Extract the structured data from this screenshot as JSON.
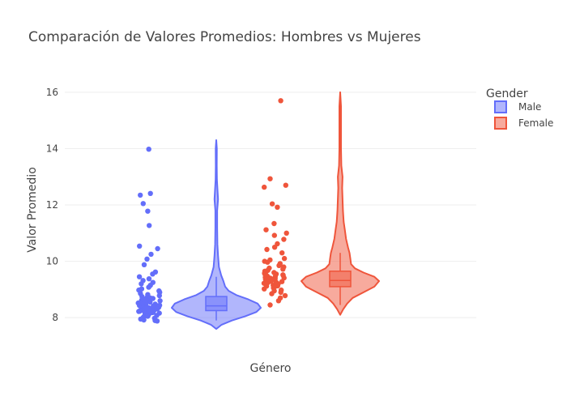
{
  "chart_data": {
    "type": "violin",
    "title": "Comparación de Valores Promedios: Hombres vs Mujeres",
    "xlabel": "Género",
    "ylabel": "Valor Promedio",
    "ylim": [
      7.2,
      16.4
    ],
    "yticks": [
      8,
      10,
      12,
      14,
      16
    ],
    "grid": true,
    "legend": {
      "title": "Gender",
      "placement": "top-right"
    },
    "series": [
      {
        "name": "Male",
        "color": "#636efa",
        "fill": "rgba(99,110,250,0.5)",
        "min": 7.6,
        "q1": 8.25,
        "median": 8.42,
        "q3": 8.75,
        "max": 14.3,
        "whisker_low": 7.9,
        "whisker_high": 9.45,
        "density": [
          [
            7.6,
            0.0
          ],
          [
            7.75,
            0.12
          ],
          [
            7.9,
            0.35
          ],
          [
            8.05,
            0.65
          ],
          [
            8.2,
            0.9
          ],
          [
            8.35,
            1.0
          ],
          [
            8.5,
            0.93
          ],
          [
            8.65,
            0.72
          ],
          [
            8.8,
            0.45
          ],
          [
            8.95,
            0.28
          ],
          [
            9.1,
            0.2
          ],
          [
            9.3,
            0.16
          ],
          [
            9.5,
            0.11
          ],
          [
            9.8,
            0.06
          ],
          [
            10.2,
            0.04
          ],
          [
            10.6,
            0.025
          ],
          [
            11.2,
            0.02
          ],
          [
            11.8,
            0.02
          ],
          [
            12.2,
            0.04
          ],
          [
            12.5,
            0.03
          ],
          [
            12.9,
            0.015
          ],
          [
            13.4,
            0.01
          ],
          [
            14.0,
            0.012
          ],
          [
            14.3,
            0.0
          ]
        ],
        "points": [
          13.98,
          12.41,
          12.35,
          12.05,
          11.78,
          11.27,
          10.54,
          10.45,
          10.25,
          10.08,
          9.88,
          9.62,
          9.55,
          9.45,
          9.38,
          9.32,
          9.25,
          9.2,
          9.15,
          9.08,
          9.02,
          8.98,
          8.95,
          8.9,
          8.86,
          8.82,
          8.78,
          8.75,
          8.72,
          8.7,
          8.68,
          8.65,
          8.62,
          8.6,
          8.58,
          8.56,
          8.55,
          8.53,
          8.5,
          8.48,
          8.46,
          8.45,
          8.43,
          8.42,
          8.4,
          8.38,
          8.36,
          8.35,
          8.33,
          8.32,
          8.3,
          8.29,
          8.27,
          8.26,
          8.25,
          8.23,
          8.22,
          8.2,
          8.19,
          8.18,
          8.16,
          8.15,
          8.13,
          8.12,
          8.1,
          8.08,
          8.06,
          8.05,
          8.03,
          8.0,
          7.98,
          7.95,
          7.92,
          7.9,
          7.88,
          8.44,
          8.37,
          8.31,
          8.28,
          8.24,
          8.21,
          8.52,
          8.57,
          8.63,
          8.67,
          8.34,
          8.41
        ]
      },
      {
        "name": "Female",
        "color": "#ef553b",
        "fill": "rgba(239,85,59,0.5)",
        "min": 8.1,
        "q1": 9.1,
        "median": 9.32,
        "q3": 9.65,
        "max": 16.0,
        "whisker_low": 8.45,
        "whisker_high": 10.3,
        "density": [
          [
            8.1,
            0.0
          ],
          [
            8.3,
            0.08
          ],
          [
            8.5,
            0.18
          ],
          [
            8.7,
            0.32
          ],
          [
            8.9,
            0.6
          ],
          [
            9.1,
            0.88
          ],
          [
            9.3,
            1.0
          ],
          [
            9.45,
            0.88
          ],
          [
            9.6,
            0.6
          ],
          [
            9.75,
            0.38
          ],
          [
            9.9,
            0.28
          ],
          [
            10.1,
            0.26
          ],
          [
            10.3,
            0.24
          ],
          [
            10.5,
            0.2
          ],
          [
            10.8,
            0.15
          ],
          [
            11.1,
            0.12
          ],
          [
            11.4,
            0.09
          ],
          [
            11.8,
            0.07
          ],
          [
            12.2,
            0.06
          ],
          [
            12.6,
            0.05
          ],
          [
            13.0,
            0.06
          ],
          [
            13.4,
            0.03
          ],
          [
            14.0,
            0.02
          ],
          [
            14.8,
            0.02
          ],
          [
            15.5,
            0.02
          ],
          [
            16.0,
            0.0
          ]
        ],
        "points": [
          15.7,
          12.93,
          12.7,
          12.63,
          12.04,
          11.92,
          11.34,
          11.12,
          11.0,
          10.92,
          10.78,
          10.62,
          10.5,
          10.42,
          10.3,
          10.1,
          10.05,
          10.0,
          9.97,
          9.92,
          9.88,
          9.85,
          9.8,
          9.76,
          9.72,
          9.68,
          9.65,
          9.62,
          9.58,
          9.55,
          9.52,
          9.5,
          9.47,
          9.45,
          9.43,
          9.4,
          9.38,
          9.36,
          9.34,
          9.32,
          9.3,
          9.28,
          9.26,
          9.24,
          9.22,
          9.2,
          9.18,
          9.15,
          9.12,
          9.1,
          9.06,
          9.02,
          8.98,
          8.95,
          8.9,
          8.85,
          8.78,
          8.7,
          8.6,
          8.45,
          9.33,
          9.27,
          9.41,
          9.19,
          9.48,
          9.37,
          9.29,
          9.56,
          9.13,
          9.6,
          9.35,
          9.25
        ]
      }
    ]
  }
}
